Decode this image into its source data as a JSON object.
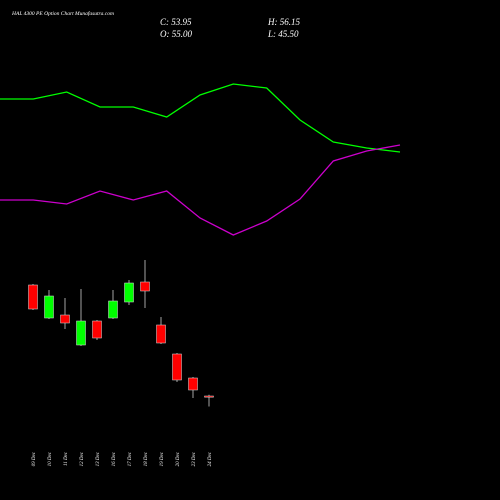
{
  "chart_data": [
    {
      "type": "candlestick",
      "title": "HAL 4300 PE Option Chart Munafasutra.com",
      "ohlc_labels": {
        "close": "C: 53.95",
        "open": "O: 55.00",
        "high": "H: 56.15",
        "low": "L: 45.50"
      },
      "categories": [
        "09 Dec",
        "10 Dec",
        "11 Dec",
        "12 Dec",
        "13 Dec",
        "16 Dec",
        "17 Dec",
        "18 Dec",
        "19 Dec",
        "20 Dec",
        "23 Dec",
        "24 Dec"
      ],
      "open": [
        154.9,
        125.2,
        127.9,
        100.9,
        122.5,
        125.2,
        139.6,
        157.6,
        118.9,
        92.8,
        71.2,
        55
      ],
      "high": [
        155.8,
        150.4,
        143.2,
        151.3,
        123.4,
        150.4,
        159.4,
        177.4,
        126.1,
        93.7,
        72.1,
        56.15
      ],
      "low": [
        132.4,
        124.3,
        115.3,
        100,
        105.4,
        124.3,
        136.9,
        134.2,
        101.8,
        67.6,
        53.2,
        45.5
      ],
      "close": [
        133.3,
        145,
        120.7,
        122.5,
        107.2,
        140.5,
        156.7,
        149.5,
        102.7,
        69.4,
        60.4,
        53.95
      ],
      "up_color": "#00ff00",
      "down_color": "#ff0000",
      "ylim": [
        -38.6,
        411.4
      ]
    },
    {
      "type": "line",
      "series": [
        {
          "color": "#00ff00",
          "values": [
            401,
            401,
            408,
            393,
            393,
            383,
            405,
            416,
            412,
            380,
            358,
            352,
            348
          ]
        },
        {
          "color": "#cc00cc",
          "values": [
            300,
            300,
            296,
            309,
            300,
            309,
            282,
            265,
            279,
            301,
            339,
            349,
            355
          ]
        }
      ],
      "ylim": [
        0,
        500
      ]
    }
  ]
}
